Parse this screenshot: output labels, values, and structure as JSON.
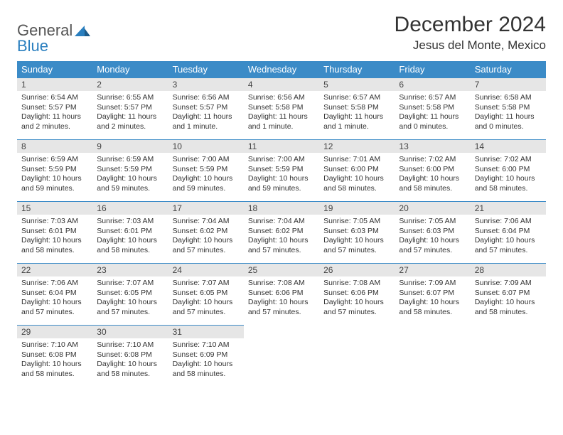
{
  "brand": {
    "word1": "General",
    "word2": "Blue"
  },
  "title": "December 2024",
  "subtitle": "Jesus del Monte, Mexico",
  "colors": {
    "header_bg": "#3b8bc7",
    "header_fg": "#ffffff",
    "daynum_bg": "#e6e6e6",
    "rule": "#3b8bc7"
  },
  "weekdays": [
    "Sunday",
    "Monday",
    "Tuesday",
    "Wednesday",
    "Thursday",
    "Friday",
    "Saturday"
  ],
  "weeks": [
    [
      {
        "n": "1",
        "sr": "Sunrise: 6:54 AM",
        "ss": "Sunset: 5:57 PM",
        "dl": "Daylight: 11 hours and 2 minutes."
      },
      {
        "n": "2",
        "sr": "Sunrise: 6:55 AM",
        "ss": "Sunset: 5:57 PM",
        "dl": "Daylight: 11 hours and 2 minutes."
      },
      {
        "n": "3",
        "sr": "Sunrise: 6:56 AM",
        "ss": "Sunset: 5:57 PM",
        "dl": "Daylight: 11 hours and 1 minute."
      },
      {
        "n": "4",
        "sr": "Sunrise: 6:56 AM",
        "ss": "Sunset: 5:58 PM",
        "dl": "Daylight: 11 hours and 1 minute."
      },
      {
        "n": "5",
        "sr": "Sunrise: 6:57 AM",
        "ss": "Sunset: 5:58 PM",
        "dl": "Daylight: 11 hours and 1 minute."
      },
      {
        "n": "6",
        "sr": "Sunrise: 6:57 AM",
        "ss": "Sunset: 5:58 PM",
        "dl": "Daylight: 11 hours and 0 minutes."
      },
      {
        "n": "7",
        "sr": "Sunrise: 6:58 AM",
        "ss": "Sunset: 5:58 PM",
        "dl": "Daylight: 11 hours and 0 minutes."
      }
    ],
    [
      {
        "n": "8",
        "sr": "Sunrise: 6:59 AM",
        "ss": "Sunset: 5:59 PM",
        "dl": "Daylight: 10 hours and 59 minutes."
      },
      {
        "n": "9",
        "sr": "Sunrise: 6:59 AM",
        "ss": "Sunset: 5:59 PM",
        "dl": "Daylight: 10 hours and 59 minutes."
      },
      {
        "n": "10",
        "sr": "Sunrise: 7:00 AM",
        "ss": "Sunset: 5:59 PM",
        "dl": "Daylight: 10 hours and 59 minutes."
      },
      {
        "n": "11",
        "sr": "Sunrise: 7:00 AM",
        "ss": "Sunset: 5:59 PM",
        "dl": "Daylight: 10 hours and 59 minutes."
      },
      {
        "n": "12",
        "sr": "Sunrise: 7:01 AM",
        "ss": "Sunset: 6:00 PM",
        "dl": "Daylight: 10 hours and 58 minutes."
      },
      {
        "n": "13",
        "sr": "Sunrise: 7:02 AM",
        "ss": "Sunset: 6:00 PM",
        "dl": "Daylight: 10 hours and 58 minutes."
      },
      {
        "n": "14",
        "sr": "Sunrise: 7:02 AM",
        "ss": "Sunset: 6:00 PM",
        "dl": "Daylight: 10 hours and 58 minutes."
      }
    ],
    [
      {
        "n": "15",
        "sr": "Sunrise: 7:03 AM",
        "ss": "Sunset: 6:01 PM",
        "dl": "Daylight: 10 hours and 58 minutes."
      },
      {
        "n": "16",
        "sr": "Sunrise: 7:03 AM",
        "ss": "Sunset: 6:01 PM",
        "dl": "Daylight: 10 hours and 58 minutes."
      },
      {
        "n": "17",
        "sr": "Sunrise: 7:04 AM",
        "ss": "Sunset: 6:02 PM",
        "dl": "Daylight: 10 hours and 57 minutes."
      },
      {
        "n": "18",
        "sr": "Sunrise: 7:04 AM",
        "ss": "Sunset: 6:02 PM",
        "dl": "Daylight: 10 hours and 57 minutes."
      },
      {
        "n": "19",
        "sr": "Sunrise: 7:05 AM",
        "ss": "Sunset: 6:03 PM",
        "dl": "Daylight: 10 hours and 57 minutes."
      },
      {
        "n": "20",
        "sr": "Sunrise: 7:05 AM",
        "ss": "Sunset: 6:03 PM",
        "dl": "Daylight: 10 hours and 57 minutes."
      },
      {
        "n": "21",
        "sr": "Sunrise: 7:06 AM",
        "ss": "Sunset: 6:04 PM",
        "dl": "Daylight: 10 hours and 57 minutes."
      }
    ],
    [
      {
        "n": "22",
        "sr": "Sunrise: 7:06 AM",
        "ss": "Sunset: 6:04 PM",
        "dl": "Daylight: 10 hours and 57 minutes."
      },
      {
        "n": "23",
        "sr": "Sunrise: 7:07 AM",
        "ss": "Sunset: 6:05 PM",
        "dl": "Daylight: 10 hours and 57 minutes."
      },
      {
        "n": "24",
        "sr": "Sunrise: 7:07 AM",
        "ss": "Sunset: 6:05 PM",
        "dl": "Daylight: 10 hours and 57 minutes."
      },
      {
        "n": "25",
        "sr": "Sunrise: 7:08 AM",
        "ss": "Sunset: 6:06 PM",
        "dl": "Daylight: 10 hours and 57 minutes."
      },
      {
        "n": "26",
        "sr": "Sunrise: 7:08 AM",
        "ss": "Sunset: 6:06 PM",
        "dl": "Daylight: 10 hours and 57 minutes."
      },
      {
        "n": "27",
        "sr": "Sunrise: 7:09 AM",
        "ss": "Sunset: 6:07 PM",
        "dl": "Daylight: 10 hours and 58 minutes."
      },
      {
        "n": "28",
        "sr": "Sunrise: 7:09 AM",
        "ss": "Sunset: 6:07 PM",
        "dl": "Daylight: 10 hours and 58 minutes."
      }
    ],
    [
      {
        "n": "29",
        "sr": "Sunrise: 7:10 AM",
        "ss": "Sunset: 6:08 PM",
        "dl": "Daylight: 10 hours and 58 minutes."
      },
      {
        "n": "30",
        "sr": "Sunrise: 7:10 AM",
        "ss": "Sunset: 6:08 PM",
        "dl": "Daylight: 10 hours and 58 minutes."
      },
      {
        "n": "31",
        "sr": "Sunrise: 7:10 AM",
        "ss": "Sunset: 6:09 PM",
        "dl": "Daylight: 10 hours and 58 minutes."
      },
      null,
      null,
      null,
      null
    ]
  ]
}
